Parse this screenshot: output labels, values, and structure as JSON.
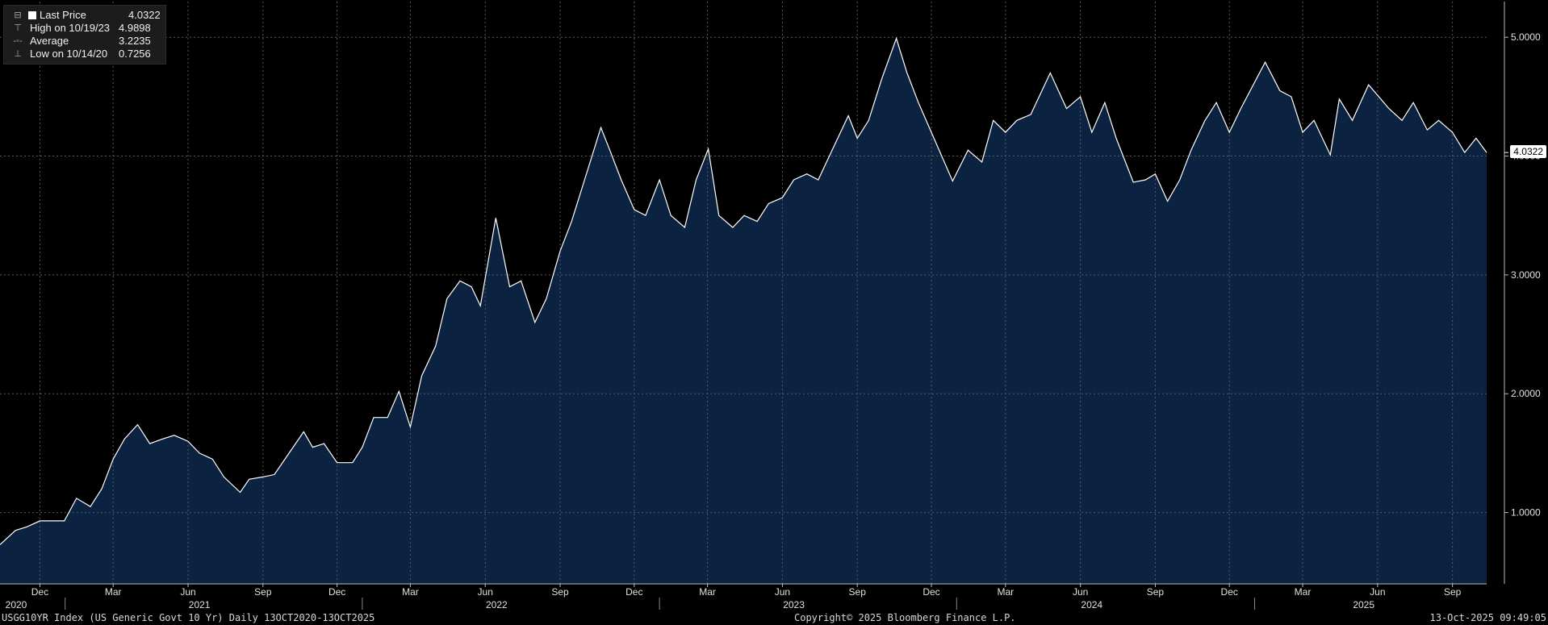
{
  "legend": {
    "items": [
      {
        "label": "Last Price",
        "value": "4.0322",
        "icon": "filled-square-icon"
      },
      {
        "label": "High on 10/19/23",
        "value": "4.9898",
        "icon": "high-marker-icon"
      },
      {
        "label": "Average",
        "value": "3.2235",
        "icon": "average-marker-icon"
      },
      {
        "label": "Low on 10/14/20",
        "value": "0.7256",
        "icon": "low-marker-icon"
      }
    ]
  },
  "last_value_tag": "4.0322",
  "footer": {
    "left": "USGG10YR Index (US Generic Govt 10 Yr) Daily 13OCT2020-13OCT2025",
    "center": "Copyright© 2025 Bloomberg Finance L.P.",
    "right": "13-Oct-2025 09:49:05"
  },
  "colors": {
    "background": "#000000",
    "area_fill": "#0b2240",
    "line": "#ffffff",
    "grid": "#5a5a5a"
  },
  "chart_data": {
    "type": "area",
    "grid": true,
    "y_axis_side": "right",
    "ylim": [
      0.4,
      5.3
    ],
    "yticks": [
      "1.0000",
      "2.0000",
      "3.0000",
      "4.0000",
      "5.0000"
    ],
    "xlim": [
      "2020-10-13",
      "2025-10-13"
    ],
    "month_ticks": [
      {
        "label": "Dec",
        "date": "2020-12-01"
      },
      {
        "label": "Mar",
        "date": "2021-03-01"
      },
      {
        "label": "Jun",
        "date": "2021-06-01"
      },
      {
        "label": "Sep",
        "date": "2021-09-01"
      },
      {
        "label": "Dec",
        "date": "2021-12-01"
      },
      {
        "label": "Mar",
        "date": "2022-03-01"
      },
      {
        "label": "Jun",
        "date": "2022-06-01"
      },
      {
        "label": "Sep",
        "date": "2022-09-01"
      },
      {
        "label": "Dec",
        "date": "2022-12-01"
      },
      {
        "label": "Mar",
        "date": "2023-03-01"
      },
      {
        "label": "Jun",
        "date": "2023-06-01"
      },
      {
        "label": "Sep",
        "date": "2023-09-01"
      },
      {
        "label": "Dec",
        "date": "2023-12-01"
      },
      {
        "label": "Mar",
        "date": "2024-03-01"
      },
      {
        "label": "Jun",
        "date": "2024-06-01"
      },
      {
        "label": "Sep",
        "date": "2024-09-01"
      },
      {
        "label": "Dec",
        "date": "2024-12-01"
      },
      {
        "label": "Mar",
        "date": "2025-03-01"
      },
      {
        "label": "Jun",
        "date": "2025-06-01"
      },
      {
        "label": "Sep",
        "date": "2025-09-01"
      }
    ],
    "year_labels": [
      {
        "label": "2020",
        "date": "2020-11-01"
      },
      {
        "label": "2021",
        "date": "2021-06-15"
      },
      {
        "label": "2022",
        "date": "2022-06-15"
      },
      {
        "label": "2023",
        "date": "2023-06-15"
      },
      {
        "label": "2024",
        "date": "2024-06-15"
      },
      {
        "label": "2025",
        "date": "2025-05-15"
      }
    ],
    "year_dividers": [
      "2021-01-01",
      "2022-01-01",
      "2023-01-01",
      "2024-01-01",
      "2025-01-01"
    ],
    "series": [
      {
        "name": "Last Price",
        "points": [
          [
            "2020-10-13",
            0.73
          ],
          [
            "2020-11-01",
            0.85
          ],
          [
            "2020-11-15",
            0.88
          ],
          [
            "2020-12-01",
            0.93
          ],
          [
            "2020-12-31",
            0.93
          ],
          [
            "2021-01-15",
            1.12
          ],
          [
            "2021-02-01",
            1.05
          ],
          [
            "2021-02-15",
            1.2
          ],
          [
            "2021-03-01",
            1.45
          ],
          [
            "2021-03-15",
            1.62
          ],
          [
            "2021-03-31",
            1.74
          ],
          [
            "2021-04-15",
            1.58
          ],
          [
            "2021-05-01",
            1.62
          ],
          [
            "2021-05-15",
            1.65
          ],
          [
            "2021-06-01",
            1.6
          ],
          [
            "2021-06-15",
            1.5
          ],
          [
            "2021-07-01",
            1.45
          ],
          [
            "2021-07-15",
            1.3
          ],
          [
            "2021-08-04",
            1.17
          ],
          [
            "2021-08-15",
            1.28
          ],
          [
            "2021-09-01",
            1.3
          ],
          [
            "2021-09-15",
            1.32
          ],
          [
            "2021-10-01",
            1.48
          ],
          [
            "2021-10-21",
            1.68
          ],
          [
            "2021-11-01",
            1.55
          ],
          [
            "2021-11-15",
            1.58
          ],
          [
            "2021-12-01",
            1.42
          ],
          [
            "2021-12-20",
            1.42
          ],
          [
            "2022-01-01",
            1.55
          ],
          [
            "2022-01-15",
            1.8
          ],
          [
            "2022-02-01",
            1.8
          ],
          [
            "2022-02-15",
            2.02
          ],
          [
            "2022-03-01",
            1.72
          ],
          [
            "2022-03-15",
            2.15
          ],
          [
            "2022-04-01",
            2.4
          ],
          [
            "2022-04-15",
            2.8
          ],
          [
            "2022-05-01",
            2.95
          ],
          [
            "2022-05-15",
            2.9
          ],
          [
            "2022-05-26",
            2.74
          ],
          [
            "2022-06-14",
            3.48
          ],
          [
            "2022-07-01",
            2.9
          ],
          [
            "2022-07-15",
            2.95
          ],
          [
            "2022-08-01",
            2.6
          ],
          [
            "2022-08-15",
            2.8
          ],
          [
            "2022-09-01",
            3.2
          ],
          [
            "2022-09-15",
            3.45
          ],
          [
            "2022-10-01",
            3.8
          ],
          [
            "2022-10-21",
            4.24
          ],
          [
            "2022-11-01",
            4.05
          ],
          [
            "2022-11-15",
            3.8
          ],
          [
            "2022-12-01",
            3.55
          ],
          [
            "2022-12-15",
            3.5
          ],
          [
            "2023-01-01",
            3.8
          ],
          [
            "2023-01-15",
            3.5
          ],
          [
            "2023-02-01",
            3.4
          ],
          [
            "2023-02-15",
            3.8
          ],
          [
            "2023-03-02",
            4.06
          ],
          [
            "2023-03-15",
            3.5
          ],
          [
            "2023-04-01",
            3.4
          ],
          [
            "2023-04-15",
            3.5
          ],
          [
            "2023-05-01",
            3.45
          ],
          [
            "2023-05-15",
            3.6
          ],
          [
            "2023-06-01",
            3.65
          ],
          [
            "2023-06-15",
            3.8
          ],
          [
            "2023-07-01",
            3.85
          ],
          [
            "2023-07-15",
            3.8
          ],
          [
            "2023-08-01",
            4.05
          ],
          [
            "2023-08-21",
            4.34
          ],
          [
            "2023-09-01",
            4.15
          ],
          [
            "2023-09-15",
            4.3
          ],
          [
            "2023-10-01",
            4.65
          ],
          [
            "2023-10-19",
            4.99
          ],
          [
            "2023-11-01",
            4.7
          ],
          [
            "2023-11-15",
            4.45
          ],
          [
            "2023-12-01",
            4.2
          ],
          [
            "2023-12-27",
            3.79
          ],
          [
            "2024-01-15",
            4.05
          ],
          [
            "2024-02-01",
            3.95
          ],
          [
            "2024-02-15",
            4.3
          ],
          [
            "2024-03-01",
            4.2
          ],
          [
            "2024-03-15",
            4.3
          ],
          [
            "2024-04-01",
            4.35
          ],
          [
            "2024-04-25",
            4.7
          ],
          [
            "2024-05-15",
            4.4
          ],
          [
            "2024-06-01",
            4.5
          ],
          [
            "2024-06-15",
            4.2
          ],
          [
            "2024-07-01",
            4.45
          ],
          [
            "2024-07-15",
            4.15
          ],
          [
            "2024-08-05",
            3.78
          ],
          [
            "2024-08-20",
            3.8
          ],
          [
            "2024-09-01",
            3.85
          ],
          [
            "2024-09-16",
            3.62
          ],
          [
            "2024-10-01",
            3.8
          ],
          [
            "2024-10-15",
            4.05
          ],
          [
            "2024-11-01",
            4.3
          ],
          [
            "2024-11-15",
            4.45
          ],
          [
            "2024-12-01",
            4.2
          ],
          [
            "2024-12-15",
            4.4
          ],
          [
            "2025-01-14",
            4.79
          ],
          [
            "2025-02-01",
            4.55
          ],
          [
            "2025-02-15",
            4.5
          ],
          [
            "2025-03-01",
            4.2
          ],
          [
            "2025-03-15",
            4.3
          ],
          [
            "2025-04-04",
            4.01
          ],
          [
            "2025-04-15",
            4.48
          ],
          [
            "2025-05-01",
            4.3
          ],
          [
            "2025-05-21",
            4.6
          ],
          [
            "2025-06-15",
            4.4
          ],
          [
            "2025-07-01",
            4.3
          ],
          [
            "2025-07-15",
            4.45
          ],
          [
            "2025-08-01",
            4.22
          ],
          [
            "2025-08-15",
            4.3
          ],
          [
            "2025-09-01",
            4.2
          ],
          [
            "2025-09-16",
            4.03
          ],
          [
            "2025-09-30",
            4.15
          ],
          [
            "2025-10-13",
            4.03
          ]
        ]
      }
    ]
  }
}
